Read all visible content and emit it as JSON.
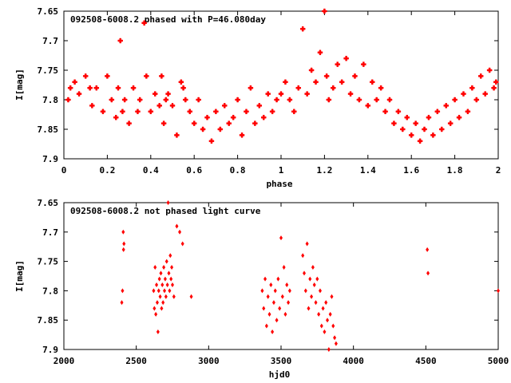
{
  "chart_data": [
    {
      "type": "scatter",
      "title": "092508-6008.2 phased with P=46.080day",
      "xlabel": "phase",
      "ylabel": "I[mag]",
      "xlim": [
        0,
        2
      ],
      "ylim": [
        7.65,
        7.9
      ],
      "y_inverted": true,
      "x_ticks": [
        "0",
        "0.2",
        "0.4",
        "0.6",
        "0.8",
        "1",
        "1.2",
        "1.4",
        "1.6",
        "1.8",
        "2"
      ],
      "y_ticks": [
        "7.65",
        "7.7",
        "7.75",
        "7.8",
        "7.85",
        "7.9"
      ],
      "marker": "cross",
      "marker_color": "#ff0000",
      "series": [
        {
          "x": [
            0.02,
            0.03,
            0.05,
            0.07,
            0.1,
            0.12,
            0.13,
            0.15,
            0.18,
            0.2,
            0.22,
            0.24,
            0.25,
            0.26,
            0.27,
            0.28,
            0.3,
            0.32,
            0.34,
            0.35,
            0.37,
            0.38,
            0.4,
            0.42,
            0.44,
            0.45,
            0.46,
            0.47,
            0.48,
            0.5,
            0.52,
            0.54,
            0.55,
            0.56,
            0.58,
            0.6,
            0.62,
            0.64,
            0.66,
            0.68,
            0.7,
            0.72,
            0.74,
            0.76,
            0.78,
            0.8,
            0.82,
            0.84,
            0.86,
            0.88,
            0.9,
            0.92,
            0.94,
            0.96,
            0.98,
            1.0,
            1.02,
            1.04,
            1.06,
            1.08,
            1.1,
            1.12,
            1.14,
            1.16,
            1.18,
            1.2,
            1.21,
            1.22,
            1.24,
            1.26,
            1.28,
            1.3,
            1.32,
            1.34,
            1.36,
            1.38,
            1.4,
            1.42,
            1.44,
            1.46,
            1.48,
            1.5,
            1.52,
            1.54,
            1.56,
            1.58,
            1.6,
            1.62,
            1.64,
            1.66,
            1.68,
            1.7,
            1.72,
            1.74,
            1.76,
            1.78,
            1.8,
            1.82,
            1.84,
            1.86,
            1.88,
            1.9,
            1.92,
            1.94,
            1.96,
            1.98,
            1.99
          ],
          "y": [
            7.8,
            7.78,
            7.77,
            7.79,
            7.76,
            7.78,
            7.81,
            7.78,
            7.82,
            7.76,
            7.8,
            7.83,
            7.78,
            7.7,
            7.82,
            7.8,
            7.84,
            7.78,
            7.82,
            7.8,
            7.67,
            7.76,
            7.82,
            7.79,
            7.81,
            7.76,
            7.84,
            7.8,
            7.79,
            7.81,
            7.86,
            7.77,
            7.78,
            7.8,
            7.82,
            7.84,
            7.8,
            7.85,
            7.83,
            7.87,
            7.82,
            7.85,
            7.81,
            7.84,
            7.83,
            7.8,
            7.86,
            7.82,
            7.78,
            7.84,
            7.81,
            7.83,
            7.79,
            7.82,
            7.8,
            7.79,
            7.77,
            7.8,
            7.82,
            7.78,
            7.68,
            7.79,
            7.75,
            7.77,
            7.72,
            7.65,
            7.76,
            7.8,
            7.78,
            7.74,
            7.77,
            7.73,
            7.79,
            7.76,
            7.8,
            7.74,
            7.81,
            7.77,
            7.8,
            7.78,
            7.82,
            7.8,
            7.84,
            7.82,
            7.85,
            7.83,
            7.86,
            7.84,
            7.87,
            7.85,
            7.83,
            7.86,
            7.82,
            7.85,
            7.81,
            7.84,
            7.8,
            7.83,
            7.79,
            7.82,
            7.78,
            7.8,
            7.76,
            7.79,
            7.75,
            7.78,
            7.77
          ]
        }
      ]
    },
    {
      "type": "scatter",
      "title": "092508-6008.2 not phased light curve",
      "xlabel": "hjd0",
      "ylabel": "I[mag]",
      "xlim": [
        2000,
        5000
      ],
      "ylim": [
        7.65,
        7.9
      ],
      "y_inverted": true,
      "x_ticks": [
        "2000",
        "2500",
        "3000",
        "3500",
        "4000",
        "4500",
        "5000"
      ],
      "y_ticks": [
        "7.65",
        "7.7",
        "7.75",
        "7.8",
        "7.85",
        "7.9"
      ],
      "marker": "diamond",
      "marker_color": "#ff0000",
      "series": [
        {
          "x": [
            2400,
            2405,
            2410,
            2412,
            2415,
            2620,
            2625,
            2630,
            2635,
            2640,
            2645,
            2650,
            2655,
            2660,
            2665,
            2670,
            2675,
            2680,
            2685,
            2690,
            2695,
            2700,
            2705,
            2710,
            2715,
            2720,
            2725,
            2730,
            2735,
            2740,
            2745,
            2750,
            2760,
            2780,
            2800,
            2820,
            2880,
            3370,
            3380,
            3390,
            3400,
            3410,
            3420,
            3430,
            3440,
            3450,
            3460,
            3470,
            3480,
            3490,
            3500,
            3510,
            3520,
            3530,
            3540,
            3550,
            3560,
            3650,
            3660,
            3670,
            3680,
            3690,
            3700,
            3710,
            3720,
            3730,
            3740,
            3750,
            3760,
            3770,
            3780,
            3790,
            3800,
            3810,
            3820,
            3830,
            3840,
            3850,
            3860,
            3870,
            3880,
            4510,
            4515,
            5000
          ],
          "y": [
            7.82,
            7.8,
            7.7,
            7.73,
            7.72,
            7.8,
            7.83,
            7.76,
            7.84,
            7.79,
            7.82,
            7.87,
            7.8,
            7.78,
            7.81,
            7.77,
            7.83,
            7.79,
            7.82,
            7.76,
            7.8,
            7.78,
            7.81,
            7.75,
            7.79,
            7.65,
            7.77,
            7.8,
            7.74,
            7.78,
            7.76,
            7.79,
            7.81,
            7.69,
            7.7,
            7.72,
            7.81,
            7.8,
            7.83,
            7.78,
            7.86,
            7.81,
            7.84,
            7.79,
            7.87,
            7.82,
            7.8,
            7.85,
            7.78,
            7.83,
            7.71,
            7.81,
            7.76,
            7.84,
            7.79,
            7.82,
            7.8,
            7.74,
            7.77,
            7.8,
            7.72,
            7.83,
            7.78,
            7.81,
            7.76,
            7.79,
            7.82,
            7.78,
            7.84,
            7.8,
            7.86,
            7.83,
            7.87,
            7.82,
            7.85,
            7.9,
            7.84,
            7.81,
            7.86,
            7.88,
            7.89,
            7.73,
            7.77,
            7.8
          ]
        }
      ]
    }
  ]
}
